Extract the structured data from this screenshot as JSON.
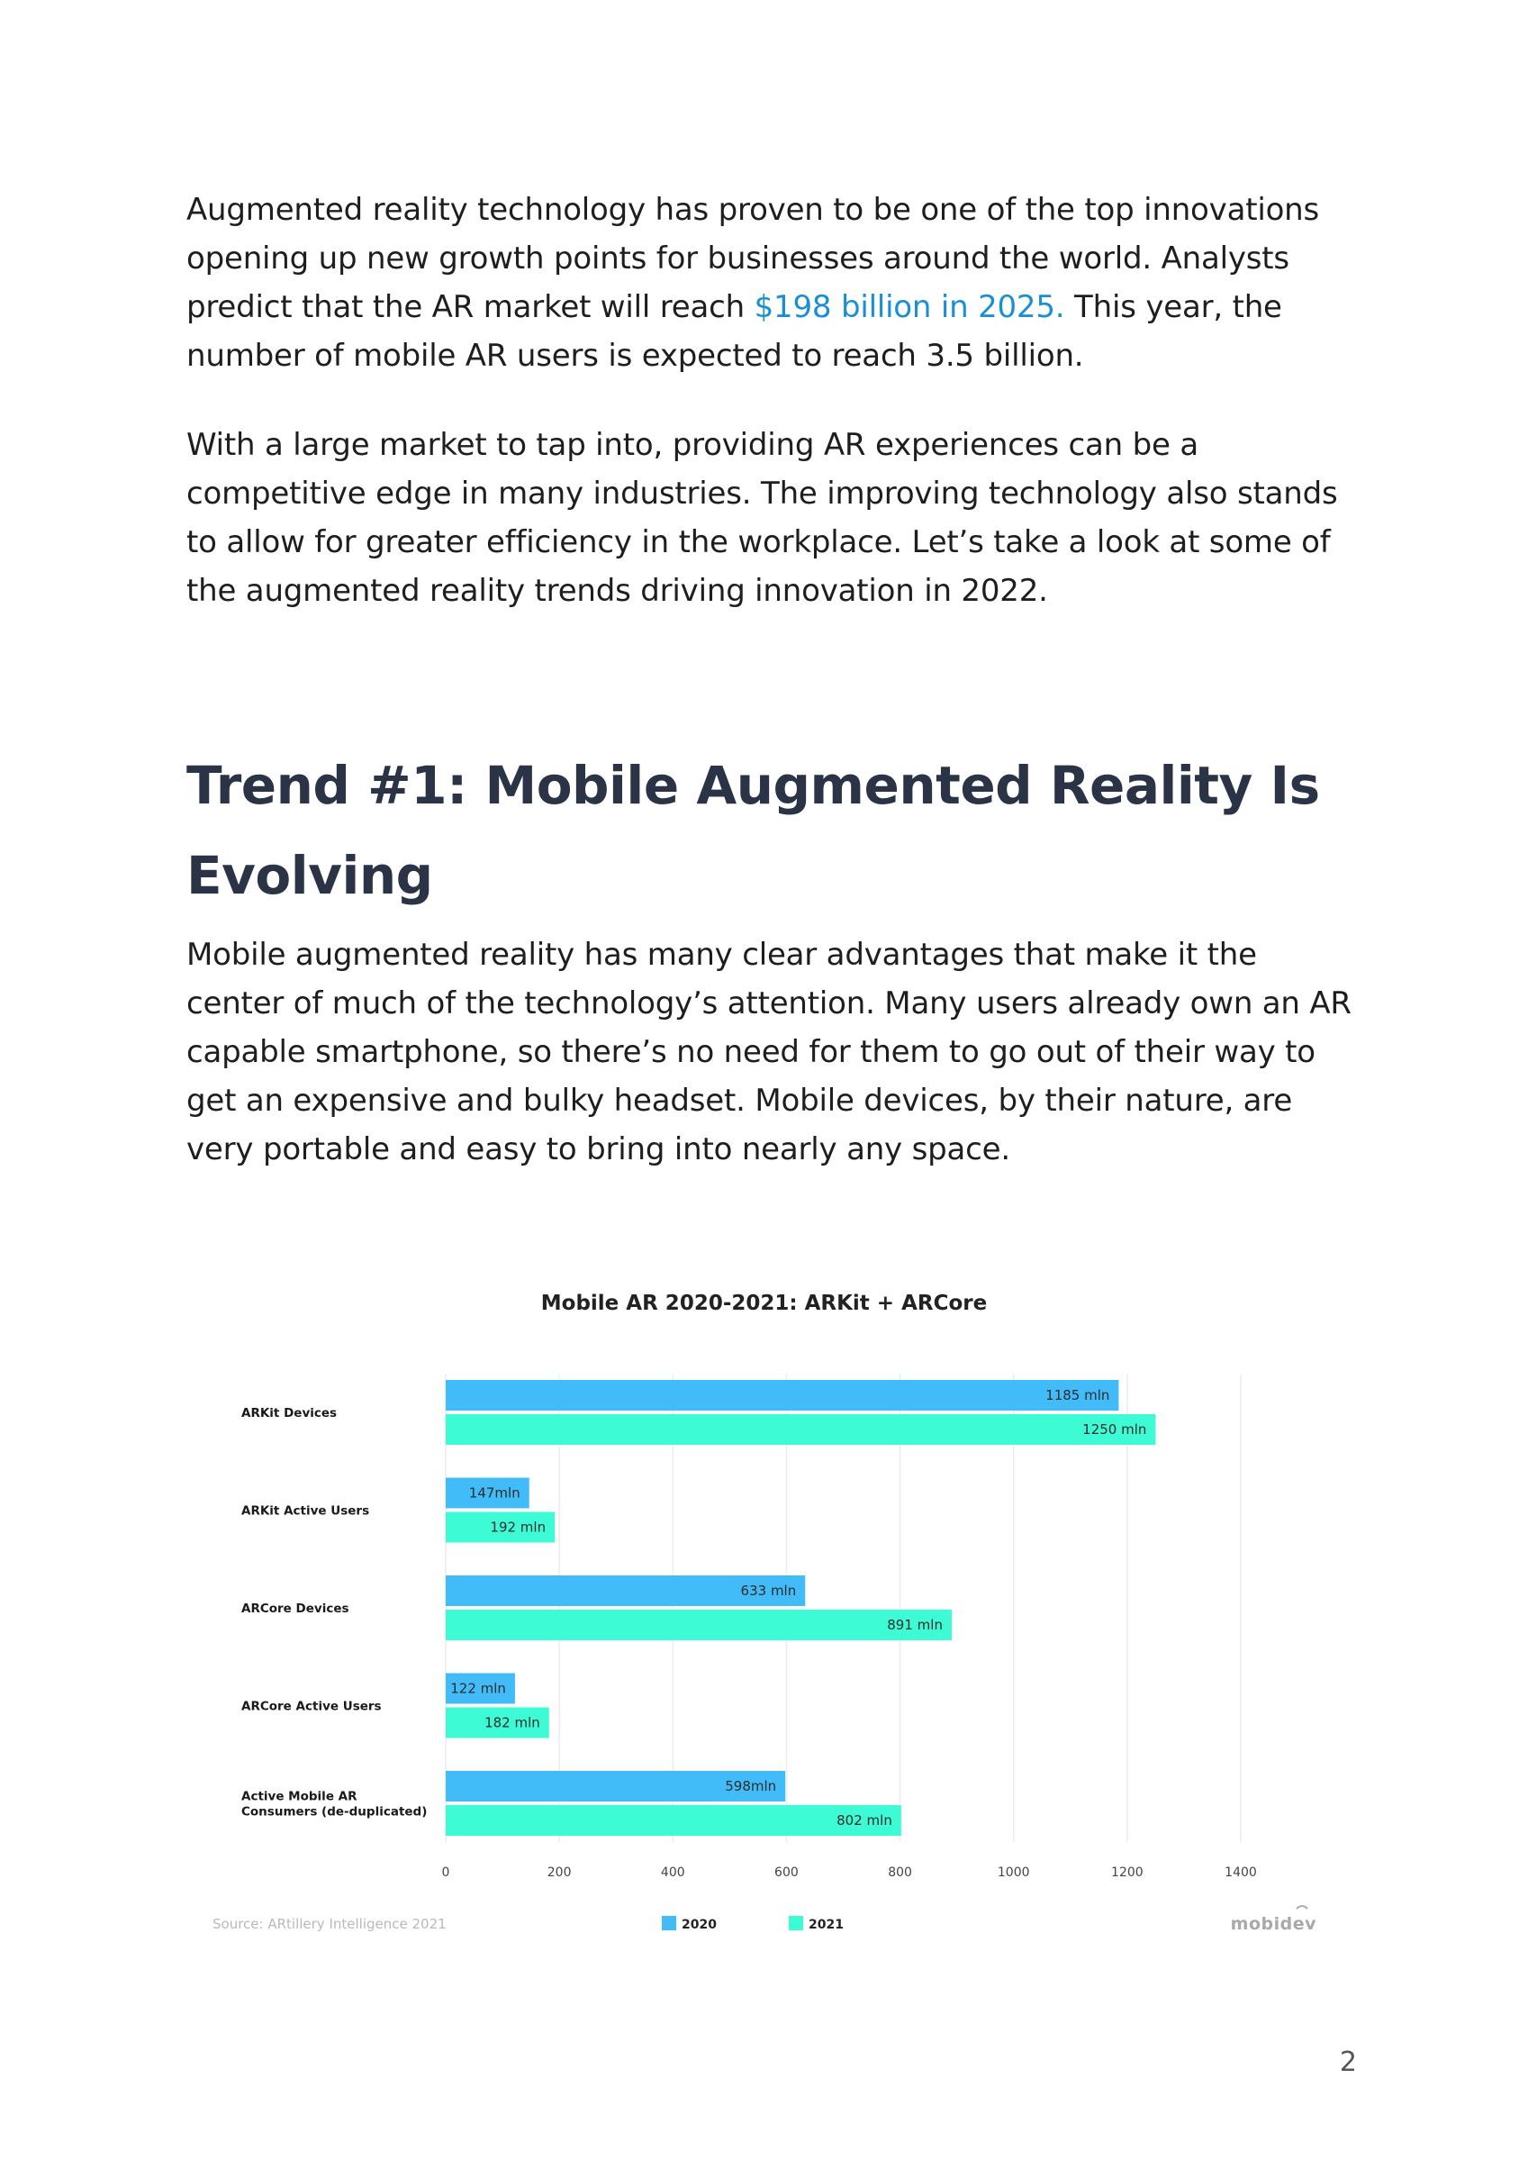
{
  "body": {
    "para1_pre": "Augmented reality technology has proven to be one of the top innovations opening up new growth points for businesses around the world. Analysts predict that the AR market will reach ",
    "para1_link": "$198 billion in 2025.",
    "para1_post": " This year, the number of mobile AR users is expected to reach 3.5 billion.",
    "para2": "With a large market to tap into, providing AR experiences can be a competitive edge in many industries. The improving technology also stands to allow for greater efficiency in the workplace. Let’s take a look at some of the augmented reality trends driving innovation in 2022.",
    "heading": "Trend #1: Mobile Augmented Reality Is Evolving",
    "para3": "Mobile augmented reality has many clear advantages that make it the center of much of the technology’s attention. Many users already own an AR capable smartphone, so there’s no need for them to go out of their way to get an expensive and bulky headset. Mobile devices, by their nature, are very portable and easy to bring into nearly any space.",
    "page_number": "2"
  },
  "chart_data": {
    "type": "bar",
    "orientation": "horizontal",
    "title": "Mobile AR 2020-2021: ARKit + ARCore",
    "categories": [
      [
        "ARKit Devices"
      ],
      [
        "ARKit Active Users"
      ],
      [
        "ARCore Devices"
      ],
      [
        "ARCore Active Users"
      ],
      [
        "Active Mobile AR",
        "Consumers (de-duplicated)"
      ]
    ],
    "series": [
      {
        "name": "2020",
        "color": "#41bcf8",
        "values": [
          1185,
          147,
          633,
          122,
          598
        ],
        "labels": [
          "1185 mln",
          "147mln",
          "633 mln",
          "122 mln",
          "598mln"
        ]
      },
      {
        "name": "2021",
        "color": "#3dfbd4",
        "values": [
          1250,
          192,
          891,
          182,
          802
        ],
        "labels": [
          "1250 mln",
          "192 mln",
          "891 mln",
          "182 mln",
          "802 mln"
        ]
      }
    ],
    "xlim": [
      0,
      1400
    ],
    "xticks": [
      0,
      200,
      400,
      600,
      800,
      1000,
      1200,
      1400
    ],
    "grid": true,
    "legend_position": "bottom-center",
    "source": "Source: ARtillery Intelligence 2021",
    "brand": "mobidev"
  }
}
